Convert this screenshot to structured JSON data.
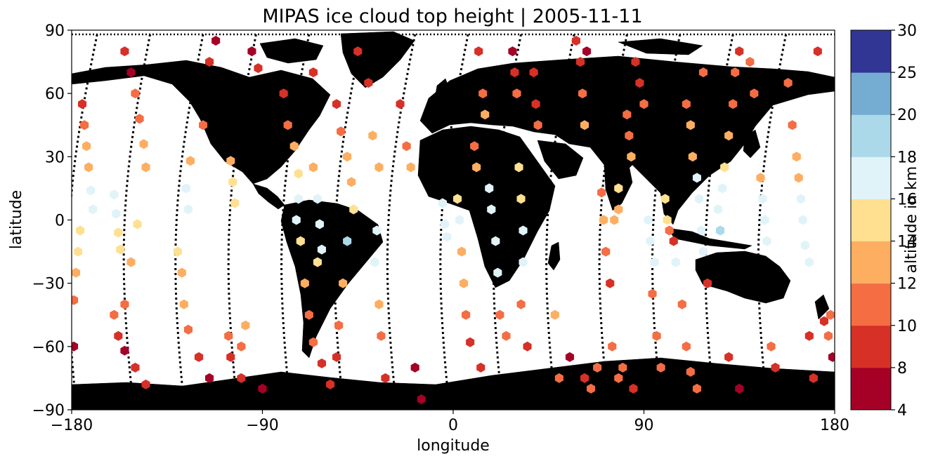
{
  "chart_data": {
    "type": "scatter",
    "title": "MIPAS ice cloud top height | 2005-11-11",
    "xlabel": "longitude",
    "ylabel": "latitude",
    "xlim": [
      -180,
      180
    ],
    "ylim": [
      -90,
      90
    ],
    "xticks": [
      -180,
      -90,
      0,
      90,
      180
    ],
    "xtick_labels": [
      "−180",
      "−90",
      "0",
      "90",
      "180"
    ],
    "yticks": [
      -90,
      -60,
      -30,
      0,
      30,
      60,
      90
    ],
    "ytick_labels": [
      "−90",
      "−60",
      "−30",
      "0",
      "30",
      "60",
      "90"
    ],
    "grid": false,
    "land_color": "#c0c0c0",
    "ocean_color": "#ffffff",
    "track_color": "#000000",
    "colorbar": {
      "label": "altitude in km",
      "boundaries": [
        4,
        8,
        10,
        12,
        14,
        16,
        18,
        20,
        25,
        30
      ],
      "tick_labels": [
        "4",
        "8",
        "10",
        "12",
        "14",
        "16",
        "18",
        "20",
        "25",
        "30"
      ],
      "colors": [
        "#a50026",
        "#d73027",
        "#f46d43",
        "#fdae61",
        "#fee090",
        "#e0f3f8",
        "#abd9e9",
        "#74add1",
        "#313695"
      ]
    },
    "orbits": [
      {
        "lon_north": -168,
        "lon_south": -178,
        "direction": "desc"
      },
      {
        "lon_north": -143,
        "lon_south": -151,
        "direction": "desc"
      },
      {
        "lon_north": -118,
        "lon_south": -127,
        "direction": "desc"
      },
      {
        "lon_north": -93,
        "lon_south": -102,
        "direction": "desc"
      },
      {
        "lon_north": -68,
        "lon_south": -77,
        "direction": "desc"
      },
      {
        "lon_north": -43,
        "lon_south": -52,
        "direction": "desc"
      },
      {
        "lon_north": -18,
        "lon_south": -27,
        "direction": "desc"
      },
      {
        "lon_north": 7,
        "lon_south": -2,
        "direction": "desc"
      },
      {
        "lon_north": 32,
        "lon_south": 23,
        "direction": "desc"
      },
      {
        "lon_north": 57,
        "lon_south": 48,
        "direction": "desc"
      },
      {
        "lon_north": 82,
        "lon_south": 73,
        "direction": "desc"
      },
      {
        "lon_north": 107,
        "lon_south": 98,
        "direction": "desc"
      },
      {
        "lon_north": 132,
        "lon_south": 123,
        "direction": "desc"
      },
      {
        "lon_north": 157,
        "lon_south": 148,
        "direction": "desc"
      }
    ],
    "observations": [
      {
        "lon": -175,
        "lat": 55,
        "alt": 8
      },
      {
        "lon": -174,
        "lat": 45,
        "alt": 10
      },
      {
        "lon": -173,
        "lat": 35,
        "alt": 12
      },
      {
        "lon": -172,
        "lat": 25,
        "alt": 13
      },
      {
        "lon": -171,
        "lat": 14,
        "alt": 16
      },
      {
        "lon": -170,
        "lat": 5,
        "alt": 17
      },
      {
        "lon": -176,
        "lat": -5,
        "alt": 15
      },
      {
        "lon": -177,
        "lat": -15,
        "alt": 15
      },
      {
        "lon": -178,
        "lat": -25,
        "alt": 13
      },
      {
        "lon": -179,
        "lat": -38,
        "alt": 11
      },
      {
        "lon": -179,
        "lat": -60,
        "alt": 6
      },
      {
        "lon": -160,
        "lat": 12,
        "alt": 17
      },
      {
        "lon": -159,
        "lat": 3,
        "alt": 17
      },
      {
        "lon": -158,
        "lat": -6,
        "alt": 15
      },
      {
        "lon": -157,
        "lat": -14,
        "alt": 15
      },
      {
        "lon": -160,
        "lat": -45,
        "alt": 10
      },
      {
        "lon": -158,
        "lat": -55,
        "alt": 8
      },
      {
        "lon": -155,
        "lat": -62,
        "alt": 7
      },
      {
        "lon": -150,
        "lat": -70,
        "alt": 8
      },
      {
        "lon": -145,
        "lat": -78,
        "alt": 9
      },
      {
        "lon": -155,
        "lat": 80,
        "alt": 8
      },
      {
        "lon": -152,
        "lat": 70,
        "alt": 7
      },
      {
        "lon": -150,
        "lat": 60,
        "alt": 10
      },
      {
        "lon": -148,
        "lat": 48,
        "alt": 11
      },
      {
        "lon": -146,
        "lat": 36,
        "alt": 12
      },
      {
        "lon": -145,
        "lat": 25,
        "alt": 13
      },
      {
        "lon": -149,
        "lat": -2,
        "alt": 15
      },
      {
        "lon": -152,
        "lat": -20,
        "alt": 13
      },
      {
        "lon": -155,
        "lat": -40,
        "alt": 11
      },
      {
        "lon": -130,
        "lat": -15,
        "alt": 15
      },
      {
        "lon": -128,
        "lat": -25,
        "alt": 13
      },
      {
        "lon": -127,
        "lat": -40,
        "alt": 12
      },
      {
        "lon": -125,
        "lat": -52,
        "alt": 11
      },
      {
        "lon": -120,
        "lat": -65,
        "alt": 9
      },
      {
        "lon": -115,
        "lat": -75,
        "alt": 7
      },
      {
        "lon": -125,
        "lat": 5,
        "alt": 17
      },
      {
        "lon": -126,
        "lat": 15,
        "alt": 16
      },
      {
        "lon": -124,
        "lat": 28,
        "alt": 12
      },
      {
        "lon": -118,
        "lat": 45,
        "alt": 10
      },
      {
        "lon": -115,
        "lat": 75,
        "alt": 8
      },
      {
        "lon": -112,
        "lat": 85,
        "alt": 7
      },
      {
        "lon": -105,
        "lat": 28,
        "alt": 13
      },
      {
        "lon": -104,
        "lat": 18,
        "alt": 15
      },
      {
        "lon": -103,
        "lat": 8,
        "alt": 15
      },
      {
        "lon": -106,
        "lat": -55,
        "alt": 10
      },
      {
        "lon": -105,
        "lat": -65,
        "alt": 9
      },
      {
        "lon": -100,
        "lat": -75,
        "alt": 8
      },
      {
        "lon": -100,
        "lat": -60,
        "alt": 11
      },
      {
        "lon": -98,
        "lat": -50,
        "alt": 12
      },
      {
        "lon": -90,
        "lat": -80,
        "alt": 6
      },
      {
        "lon": -95,
        "lat": 80,
        "alt": 7
      },
      {
        "lon": -92,
        "lat": 72,
        "alt": 8
      },
      {
        "lon": -80,
        "lat": 60,
        "alt": 9
      },
      {
        "lon": -78,
        "lat": 45,
        "alt": 10
      },
      {
        "lon": -75,
        "lat": 35,
        "alt": 12
      },
      {
        "lon": -73,
        "lat": 22,
        "alt": 15
      },
      {
        "lon": -73,
        "lat": 10,
        "alt": 17
      },
      {
        "lon": -74,
        "lat": 0,
        "alt": 17
      },
      {
        "lon": -72,
        "lat": -10,
        "alt": 15
      },
      {
        "lon": -70,
        "lat": -30,
        "alt": 13
      },
      {
        "lon": -68,
        "lat": -45,
        "alt": 11
      },
      {
        "lon": -66,
        "lat": -58,
        "alt": 10
      },
      {
        "lon": -62,
        "lat": -68,
        "alt": 9
      },
      {
        "lon": -58,
        "lat": -78,
        "alt": 8
      },
      {
        "lon": -66,
        "lat": 25,
        "alt": 12
      },
      {
        "lon": -64,
        "lat": 10,
        "alt": 16
      },
      {
        "lon": -63,
        "lat": -2,
        "alt": 17
      },
      {
        "lon": -62,
        "lat": -14,
        "alt": 17
      },
      {
        "lon": -64,
        "lat": -20,
        "alt": 15
      },
      {
        "lon": -66,
        "lat": 70,
        "alt": 8
      },
      {
        "lon": -55,
        "lat": 55,
        "alt": 9
      },
      {
        "lon": -53,
        "lat": 42,
        "alt": 10
      },
      {
        "lon": -50,
        "lat": 30,
        "alt": 12
      },
      {
        "lon": -48,
        "lat": 18,
        "alt": 13
      },
      {
        "lon": -47,
        "lat": 5,
        "alt": 15
      },
      {
        "lon": -50,
        "lat": -10,
        "alt": 18
      },
      {
        "lon": -52,
        "lat": -30,
        "alt": 13
      },
      {
        "lon": -54,
        "lat": -50,
        "alt": 11
      },
      {
        "lon": -55,
        "lat": -65,
        "alt": 9
      },
      {
        "lon": -45,
        "lat": 80,
        "alt": 8
      },
      {
        "lon": -40,
        "lat": 65,
        "alt": 9
      },
      {
        "lon": -38,
        "lat": 40,
        "alt": 12
      },
      {
        "lon": -35,
        "lat": 25,
        "alt": 13
      },
      {
        "lon": -36,
        "lat": -5,
        "alt": 17
      },
      {
        "lon": -37,
        "lat": -20,
        "alt": 16
      },
      {
        "lon": -35,
        "lat": -40,
        "alt": 13
      },
      {
        "lon": -34,
        "lat": -55,
        "alt": 11
      },
      {
        "lon": -32,
        "lat": -75,
        "alt": 8
      },
      {
        "lon": -25,
        "lat": 55,
        "alt": 9
      },
      {
        "lon": -22,
        "lat": 35,
        "alt": 11
      },
      {
        "lon": -20,
        "lat": 25,
        "alt": 12
      },
      {
        "lon": -18,
        "lat": -70,
        "alt": 7
      },
      {
        "lon": -15,
        "lat": -85,
        "alt": 6
      },
      {
        "lon": -5,
        "lat": 8,
        "alt": 17
      },
      {
        "lon": -4,
        "lat": -2,
        "alt": 17
      },
      {
        "lon": -3,
        "lat": -8,
        "alt": 17
      },
      {
        "lon": 2,
        "lat": 10,
        "alt": 15
      },
      {
        "lon": 3,
        "lat": 0,
        "alt": 17
      },
      {
        "lon": 4,
        "lat": -15,
        "alt": 13
      },
      {
        "lon": 5,
        "lat": -30,
        "alt": 12
      },
      {
        "lon": 6,
        "lat": -45,
        "alt": 10
      },
      {
        "lon": 8,
        "lat": -58,
        "alt": 9
      },
      {
        "lon": 10,
        "lat": 35,
        "alt": 11
      },
      {
        "lon": 11,
        "lat": 25,
        "alt": 12
      },
      {
        "lon": 13,
        "lat": -70,
        "alt": 8
      },
      {
        "lon": 12,
        "lat": 80,
        "alt": 8
      },
      {
        "lon": 14,
        "lat": 60,
        "alt": 11
      },
      {
        "lon": 15,
        "lat": 50,
        "alt": 13
      },
      {
        "lon": 17,
        "lat": 15,
        "alt": 17
      },
      {
        "lon": 18,
        "lat": 5,
        "alt": 17
      },
      {
        "lon": 20,
        "lat": -10,
        "alt": 17
      },
      {
        "lon": 21,
        "lat": -25,
        "alt": 17
      },
      {
        "lon": 22,
        "lat": -45,
        "alt": 10
      },
      {
        "lon": 25,
        "lat": -55,
        "alt": 11
      },
      {
        "lon": 28,
        "lat": 80,
        "alt": 7
      },
      {
        "lon": 29,
        "lat": 70,
        "alt": 9
      },
      {
        "lon": 30,
        "lat": 60,
        "alt": 10
      },
      {
        "lon": 31,
        "lat": 25,
        "alt": 14
      },
      {
        "lon": 32,
        "lat": 10,
        "alt": 15
      },
      {
        "lon": 33,
        "lat": -5,
        "alt": 17
      },
      {
        "lon": 33,
        "lat": -20,
        "alt": 17
      },
      {
        "lon": 32,
        "lat": -40,
        "alt": 11
      },
      {
        "lon": 35,
        "lat": -60,
        "alt": 9
      },
      {
        "lon": 38,
        "lat": 70,
        "alt": 8
      },
      {
        "lon": 39,
        "lat": 55,
        "alt": 9
      },
      {
        "lon": 40,
        "lat": 45,
        "alt": 10
      },
      {
        "lon": 48,
        "lat": -45,
        "alt": 13
      },
      {
        "lon": 50,
        "lat": -75,
        "alt": 10
      },
      {
        "lon": 55,
        "lat": -65,
        "alt": 7
      },
      {
        "lon": 58,
        "lat": 85,
        "alt": 8
      },
      {
        "lon": 60,
        "lat": 75,
        "alt": 9
      },
      {
        "lon": 61,
        "lat": 60,
        "alt": 11
      },
      {
        "lon": 62,
        "lat": 45,
        "alt": 12
      },
      {
        "lon": 63,
        "lat": 80,
        "alt": 7
      },
      {
        "lon": 62,
        "lat": -75,
        "alt": 9
      },
      {
        "lon": 65,
        "lat": -80,
        "alt": 11
      },
      {
        "lon": 68,
        "lat": -70,
        "alt": 10
      },
      {
        "lon": 70,
        "lat": 13,
        "alt": 11
      },
      {
        "lon": 71,
        "lat": 0,
        "alt": 12
      },
      {
        "lon": 72,
        "lat": -15,
        "alt": 11
      },
      {
        "lon": 74,
        "lat": -30,
        "alt": 9
      },
      {
        "lon": 75,
        "lat": -60,
        "alt": 11
      },
      {
        "lon": 78,
        "lat": -75,
        "alt": 10
      },
      {
        "lon": 78,
        "lat": 15,
        "alt": 15
      },
      {
        "lon": 78,
        "lat": 5,
        "alt": 13
      },
      {
        "lon": 76,
        "lat": 0,
        "alt": 13
      },
      {
        "lon": 80,
        "lat": -70,
        "alt": 11
      },
      {
        "lon": 85,
        "lat": -80,
        "alt": 9
      },
      {
        "lon": 82,
        "lat": 50,
        "alt": 10
      },
      {
        "lon": 83,
        "lat": 40,
        "alt": 11
      },
      {
        "lon": 84,
        "lat": 30,
        "alt": 12
      },
      {
        "lon": 86,
        "lat": 75,
        "alt": 8
      },
      {
        "lon": 88,
        "lat": 65,
        "alt": 9
      },
      {
        "lon": 90,
        "lat": 55,
        "alt": 11
      },
      {
        "lon": 92,
        "lat": 0,
        "alt": 17
      },
      {
        "lon": 93,
        "lat": -10,
        "alt": 17
      },
      {
        "lon": 95,
        "lat": -20,
        "alt": 17
      },
      {
        "lon": 94,
        "lat": -35,
        "alt": 11
      },
      {
        "lon": 96,
        "lat": -55,
        "alt": 10
      },
      {
        "lon": 98,
        "lat": -70,
        "alt": 11
      },
      {
        "lon": 100,
        "lat": 10,
        "alt": 15
      },
      {
        "lon": 101,
        "lat": 0,
        "alt": 15
      },
      {
        "lon": 102,
        "lat": -5,
        "alt": 11
      },
      {
        "lon": 104,
        "lat": -10,
        "alt": 9
      },
      {
        "lon": 105,
        "lat": -20,
        "alt": 16
      },
      {
        "lon": 108,
        "lat": -40,
        "alt": 11
      },
      {
        "lon": 110,
        "lat": -60,
        "alt": 10
      },
      {
        "lon": 112,
        "lat": -72,
        "alt": 11
      },
      {
        "lon": 115,
        "lat": -80,
        "alt": 11
      },
      {
        "lon": 110,
        "lat": 55,
        "alt": 11
      },
      {
        "lon": 112,
        "lat": 45,
        "alt": 12
      },
      {
        "lon": 113,
        "lat": 30,
        "alt": 13
      },
      {
        "lon": 115,
        "lat": 20,
        "alt": 16
      },
      {
        "lon": 116,
        "lat": 10,
        "alt": 17
      },
      {
        "lon": 117,
        "lat": -5,
        "alt": 17
      },
      {
        "lon": 118,
        "lat": -15,
        "alt": 17
      },
      {
        "lon": 120,
        "lat": -30,
        "alt": 9
      },
      {
        "lon": 118,
        "lat": 70,
        "alt": 10
      },
      {
        "lon": 125,
        "lat": 5,
        "alt": 17
      },
      {
        "lon": 126,
        "lat": -5,
        "alt": 18
      },
      {
        "lon": 127,
        "lat": 15,
        "alt": 16
      },
      {
        "lon": 128,
        "lat": 25,
        "alt": 15
      },
      {
        "lon": 130,
        "lat": 40,
        "alt": 12
      },
      {
        "lon": 132,
        "lat": 55,
        "alt": 11
      },
      {
        "lon": 133,
        "lat": 70,
        "alt": 10
      },
      {
        "lon": 135,
        "lat": 80,
        "alt": 8
      },
      {
        "lon": 130,
        "lat": -65,
        "alt": 8
      },
      {
        "lon": 135,
        "lat": -80,
        "alt": 7
      },
      {
        "lon": 140,
        "lat": 75,
        "alt": 10
      },
      {
        "lon": 142,
        "lat": 60,
        "alt": 11
      },
      {
        "lon": 145,
        "lat": 20,
        "alt": 13
      },
      {
        "lon": 146,
        "lat": 10,
        "alt": 16
      },
      {
        "lon": 147,
        "lat": 0,
        "alt": 17
      },
      {
        "lon": 148,
        "lat": -10,
        "alt": 17
      },
      {
        "lon": 150,
        "lat": -60,
        "alt": 10
      },
      {
        "lon": 152,
        "lat": -70,
        "alt": 8
      },
      {
        "lon": 158,
        "lat": 65,
        "alt": 10
      },
      {
        "lon": 160,
        "lat": 45,
        "alt": 11
      },
      {
        "lon": 162,
        "lat": 30,
        "alt": 13
      },
      {
        "lon": 163,
        "lat": 20,
        "alt": 12
      },
      {
        "lon": 164,
        "lat": 10,
        "alt": 17
      },
      {
        "lon": 165,
        "lat": 0,
        "alt": 17
      },
      {
        "lon": 166,
        "lat": -12,
        "alt": 17
      },
      {
        "lon": 168,
        "lat": -20,
        "alt": 17
      },
      {
        "lon": 168,
        "lat": -55,
        "alt": 8
      },
      {
        "lon": 170,
        "lat": -75,
        "alt": 9
      },
      {
        "lon": 172,
        "lat": 80,
        "alt": 8
      },
      {
        "lon": 175,
        "lat": -48,
        "alt": 9
      },
      {
        "lon": 177,
        "lat": -55,
        "alt": 10
      },
      {
        "lon": 178,
        "lat": -45,
        "alt": 11
      },
      {
        "lon": 179,
        "lat": -65,
        "alt": 7
      }
    ]
  }
}
